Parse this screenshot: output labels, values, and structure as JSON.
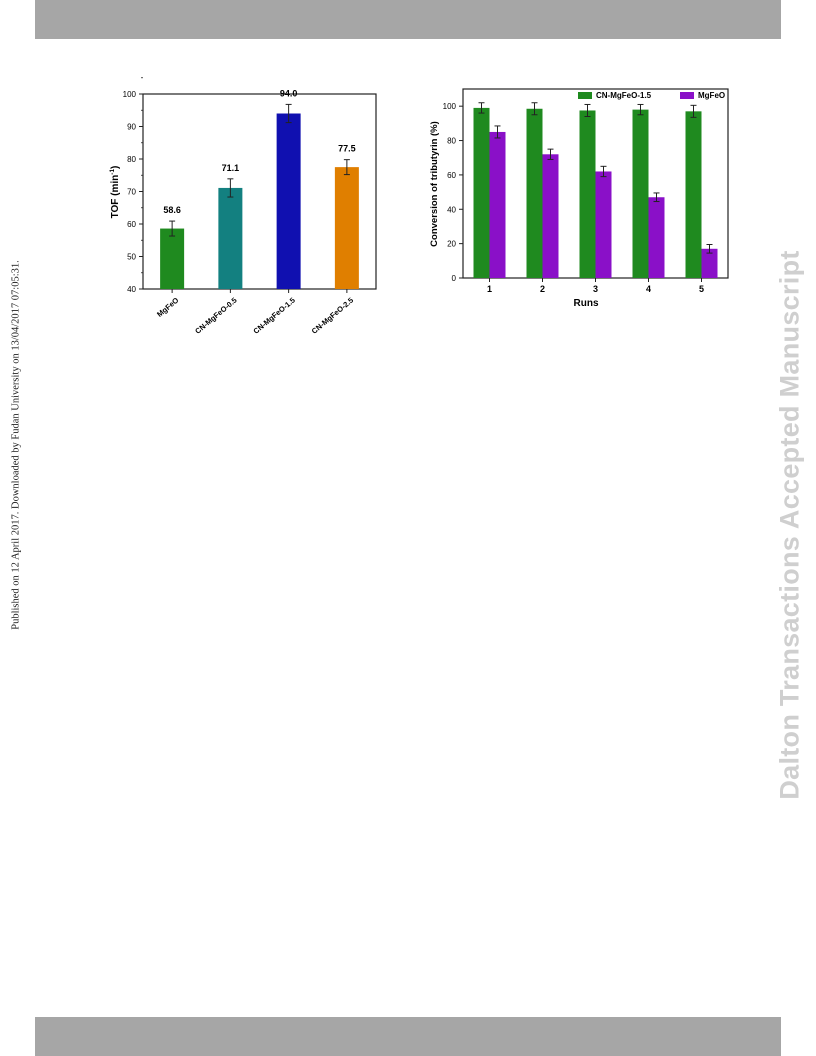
{
  "page": {
    "side_note": "Published on 12 April 2017. Downloaded by Fudan University on 13/04/2017 07:05:31.",
    "watermark": "Dalton Transactions Accepted Manuscript"
  },
  "chart_data": [
    {
      "type": "bar",
      "title": "",
      "xlabel": "",
      "ylabel": "TOF (min",
      "ylabel_superscript": "-1",
      "ylabel_suffix": ")",
      "categories": [
        "MgFeO",
        "CN-MgFeO-0.5",
        "CN-MgFeO-1.5",
        "CN-MgFeO-2.5"
      ],
      "values": [
        58.6,
        71.1,
        94.0,
        77.5
      ],
      "value_labels": [
        "58.6",
        "71.1",
        "94.0",
        "77.5"
      ],
      "errors": [
        2.3,
        2.8,
        2.8,
        2.3
      ],
      "colors": [
        "#1f8a1f",
        "#138080",
        "#1010b0",
        "#e07f00"
      ],
      "ylim": [
        40,
        100
      ],
      "yticks": [
        "40",
        "50",
        "60",
        "70",
        "80",
        "90",
        "100"
      ],
      "grid": false,
      "legend": "none"
    },
    {
      "type": "bar",
      "title": "",
      "xlabel": "Runs",
      "ylabel": "Conversion of tributyrin (%)",
      "categories": [
        "1",
        "2",
        "3",
        "4",
        "5"
      ],
      "series": [
        {
          "name": "CN-MgFeO-1.5",
          "color": "#1f8a1f",
          "values": [
            99,
            98.5,
            97.5,
            98,
            97
          ],
          "errors": [
            3,
            3.5,
            3.5,
            3,
            3.5
          ]
        },
        {
          "name": "MgFeO",
          "color": "#8a10c8",
          "values": [
            85,
            72,
            62,
            47,
            17
          ],
          "errors": [
            3.5,
            3,
            3,
            2.5,
            2.5
          ]
        }
      ],
      "ylim": [
        0,
        110
      ],
      "yticks": [
        "0",
        "20",
        "40",
        "60",
        "80",
        "100"
      ],
      "grid": false,
      "legend": "top-right"
    }
  ]
}
